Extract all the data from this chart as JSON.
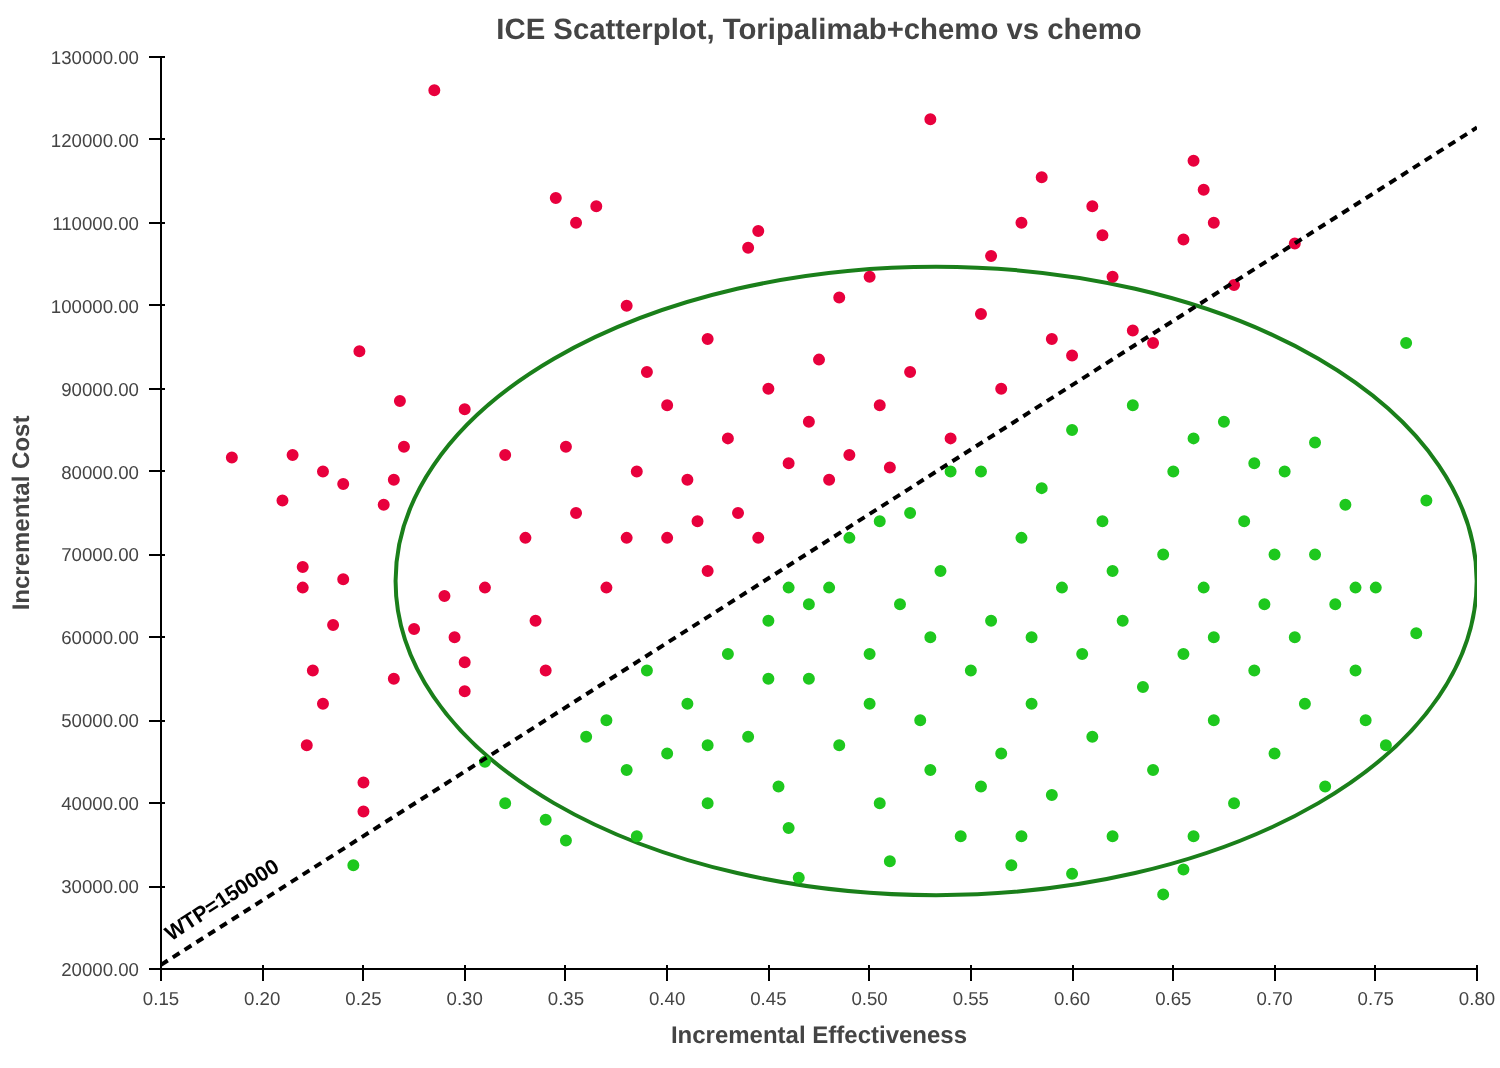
{
  "chart_data": {
    "type": "scatter",
    "title": "ICE Scatterplot, Toripalimab+chemo vs chemo",
    "xlabel": "Incremental Effectiveness",
    "ylabel": "Incremental Cost",
    "xlim": [
      0.15,
      0.8
    ],
    "ylim": [
      20000,
      130000
    ],
    "xticks": [
      {
        "value": 0.15,
        "label": "0.15"
      },
      {
        "value": 0.2,
        "label": "0.20"
      },
      {
        "value": 0.25,
        "label": "0.25"
      },
      {
        "value": 0.3,
        "label": "0.30"
      },
      {
        "value": 0.35,
        "label": "0.35"
      },
      {
        "value": 0.4,
        "label": "0.40"
      },
      {
        "value": 0.45,
        "label": "0.45"
      },
      {
        "value": 0.5,
        "label": "0.50"
      },
      {
        "value": 0.55,
        "label": "0.55"
      },
      {
        "value": 0.6,
        "label": "0.60"
      },
      {
        "value": 0.65,
        "label": "0.65"
      },
      {
        "value": 0.7,
        "label": "0.70"
      },
      {
        "value": 0.75,
        "label": "0.75"
      },
      {
        "value": 0.8,
        "label": "0.80"
      }
    ],
    "yticks": [
      {
        "value": 20000,
        "label": "20000.00"
      },
      {
        "value": 30000,
        "label": "30000.00"
      },
      {
        "value": 40000,
        "label": "40000.00"
      },
      {
        "value": 50000,
        "label": "50000.00"
      },
      {
        "value": 60000,
        "label": "60000.00"
      },
      {
        "value": 70000,
        "label": "70000.00"
      },
      {
        "value": 80000,
        "label": "80000.00"
      },
      {
        "value": 90000,
        "label": "90000.00"
      },
      {
        "value": 100000,
        "label": "100000.00"
      },
      {
        "value": 110000,
        "label": "110000.00"
      },
      {
        "value": 120000,
        "label": "120000.00"
      },
      {
        "value": 130000,
        "label": "130000.00"
      }
    ],
    "grid": false,
    "legend": false,
    "marker": "circle",
    "series": [
      {
        "color": "#e8003d",
        "x": [
          0.185,
          0.21,
          0.215,
          0.22,
          0.22,
          0.222,
          0.225,
          0.23,
          0.23,
          0.235,
          0.24,
          0.24,
          0.248,
          0.25,
          0.25,
          0.26,
          0.265,
          0.265,
          0.268,
          0.27,
          0.275,
          0.285,
          0.29,
          0.295,
          0.3,
          0.3,
          0.3,
          0.31,
          0.32,
          0.33,
          0.335,
          0.34,
          0.345,
          0.35,
          0.355,
          0.365,
          0.37,
          0.38,
          0.385,
          0.39,
          0.4,
          0.4,
          0.41,
          0.42,
          0.42,
          0.43,
          0.435,
          0.44,
          0.445,
          0.45,
          0.46,
          0.47,
          0.48,
          0.485,
          0.49,
          0.5,
          0.505,
          0.51,
          0.52,
          0.53,
          0.54,
          0.555,
          0.56,
          0.565,
          0.575,
          0.585,
          0.59,
          0.6,
          0.61,
          0.615,
          0.62,
          0.63,
          0.64,
          0.655,
          0.66,
          0.665,
          0.67,
          0.68,
          0.71,
          0.475,
          0.38,
          0.355,
          0.415,
          0.445
        ],
        "values": [
          81700,
          76500,
          82000,
          66000,
          68500,
          47000,
          56000,
          52000,
          80000,
          61500,
          78500,
          67000,
          94500,
          42500,
          39000,
          76000,
          79000,
          55000,
          88500,
          83000,
          61000,
          126000,
          65000,
          60000,
          57000,
          53500,
          87500,
          66000,
          82000,
          72000,
          62000,
          56000,
          113000,
          83000,
          110000,
          112000,
          66000,
          100000,
          80000,
          92000,
          88000,
          72000,
          79000,
          96000,
          68000,
          84000,
          75000,
          107000,
          109000,
          90000,
          81000,
          86000,
          79000,
          101000,
          82000,
          103500,
          88000,
          80500,
          92000,
          122500,
          84000,
          99000,
          106000,
          90000,
          110000,
          115500,
          96000,
          94000,
          112000,
          108500,
          103500,
          97000,
          95500,
          108000,
          117500,
          114000,
          110000,
          102500,
          107500,
          93500,
          72000,
          75000,
          74000,
          72000
        ]
      },
      {
        "color": "#1ec81e",
        "x": [
          0.245,
          0.31,
          0.32,
          0.34,
          0.35,
          0.36,
          0.37,
          0.38,
          0.385,
          0.39,
          0.4,
          0.41,
          0.42,
          0.43,
          0.44,
          0.45,
          0.455,
          0.46,
          0.465,
          0.47,
          0.48,
          0.485,
          0.49,
          0.5,
          0.505,
          0.51,
          0.515,
          0.52,
          0.525,
          0.53,
          0.535,
          0.54,
          0.545,
          0.55,
          0.555,
          0.56,
          0.565,
          0.57,
          0.575,
          0.58,
          0.585,
          0.59,
          0.595,
          0.6,
          0.6,
          0.605,
          0.61,
          0.615,
          0.62,
          0.625,
          0.63,
          0.635,
          0.64,
          0.645,
          0.645,
          0.65,
          0.655,
          0.66,
          0.665,
          0.67,
          0.675,
          0.68,
          0.685,
          0.69,
          0.695,
          0.7,
          0.705,
          0.71,
          0.715,
          0.72,
          0.725,
          0.73,
          0.735,
          0.74,
          0.745,
          0.75,
          0.755,
          0.765,
          0.77,
          0.775,
          0.72,
          0.69,
          0.66,
          0.575,
          0.555,
          0.5,
          0.45,
          0.42,
          0.47,
          0.53,
          0.58,
          0.62,
          0.67,
          0.7,
          0.74,
          0.655,
          0.46,
          0.505
        ],
        "values": [
          32500,
          45000,
          40000,
          38000,
          35500,
          48000,
          50000,
          44000,
          36000,
          56000,
          46000,
          52000,
          40000,
          58000,
          48000,
          62000,
          42000,
          37000,
          31000,
          55000,
          66000,
          47000,
          72000,
          58000,
          40000,
          33000,
          64000,
          75000,
          50000,
          44000,
          68000,
          80000,
          36000,
          56000,
          80000,
          62000,
          46000,
          32500,
          72000,
          52000,
          78000,
          41000,
          66000,
          85000,
          31500,
          58000,
          48000,
          74000,
          36000,
          62000,
          88000,
          54000,
          44000,
          70000,
          29000,
          80000,
          58000,
          36000,
          66000,
          50000,
          86000,
          40000,
          74000,
          56000,
          64000,
          46000,
          80000,
          60000,
          52000,
          70000,
          42000,
          64000,
          76000,
          56000,
          50000,
          66000,
          47000,
          95500,
          60500,
          76500,
          83500,
          81000,
          84000,
          36000,
          42000,
          52000,
          55000,
          47000,
          64000,
          60000,
          60000,
          68000,
          60000,
          70000,
          66000,
          32000,
          66000,
          74000
        ]
      },
      {
        "type": "line",
        "marker": "none",
        "name": "WTP=150000",
        "color": "#000000",
        "line_style": "dashed",
        "x": [
          0.15,
          0.8
        ],
        "values": [
          20500,
          121500
        ]
      }
    ]
  }
}
